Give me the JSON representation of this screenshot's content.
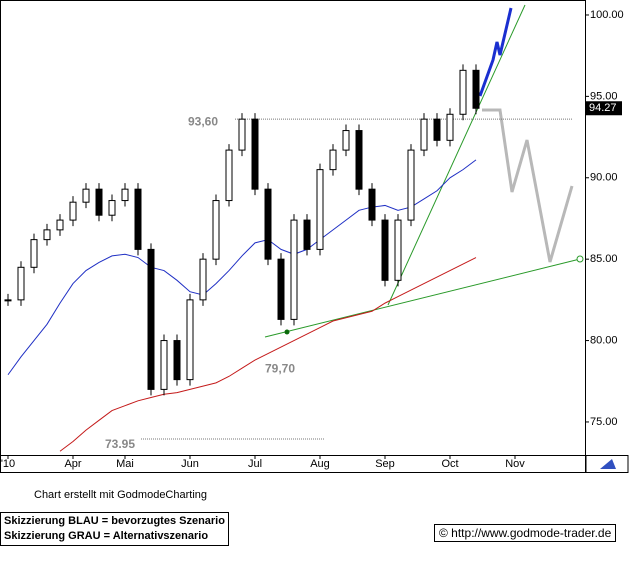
{
  "chart_data": {
    "type": "candlestick",
    "categories": [
      "'10",
      null,
      null,
      null,
      null,
      "Apr",
      null,
      null,
      null,
      "Mai",
      null,
      null,
      null,
      null,
      "Jun",
      null,
      null,
      null,
      null,
      "Jul",
      null,
      null,
      null,
      null,
      "Aug",
      null,
      null,
      null,
      null,
      "Sep",
      null,
      null,
      null,
      null,
      "Oct",
      null,
      null,
      null,
      null,
      "Nov",
      null,
      null,
      null,
      null,
      null
    ],
    "series": [
      {
        "name": "close",
        "color": "#000000",
        "values": [
          82.5,
          84.5,
          86.2,
          86.8,
          87.4,
          88.5,
          89.3,
          87.7,
          88.6,
          89.3,
          85.6,
          77,
          80,
          77.6,
          82.5,
          85,
          88.6,
          91.7,
          93.6,
          89.3,
          85,
          81.3,
          87.4,
          85.6,
          90.5,
          91.7,
          92.9,
          89.3,
          87.4,
          83.7,
          87.4,
          91.7,
          93.6,
          92.3,
          93.9,
          96.6,
          94.27,
          null,
          null,
          null,
          null,
          null,
          null,
          null,
          null
        ]
      },
      {
        "name": "ma-short",
        "color": "#1f2fc4",
        "values": [
          77.9,
          79,
          80,
          81,
          82.3,
          83.5,
          84.3,
          84.8,
          85.2,
          85.3,
          85.1,
          84.5,
          84.3,
          83.7,
          83,
          82.8,
          83.5,
          84.3,
          85.2,
          86,
          86.2,
          85.6,
          85.3,
          85.6,
          86.2,
          86.8,
          87.4,
          88,
          88.2,
          88.3,
          88,
          88.2,
          88.7,
          89.2,
          90,
          90.5,
          91.1,
          null,
          null,
          null,
          null,
          null,
          null,
          null,
          null
        ]
      },
      {
        "name": "ma-long",
        "color": "#c41a1a",
        "values": [
          null,
          null,
          null,
          null,
          73.2,
          73.8,
          74.5,
          75.1,
          75.7,
          76,
          76.3,
          76.5,
          76.7,
          76.8,
          77,
          77.2,
          77.4,
          77.8,
          78.3,
          78.8,
          79.2,
          79.6,
          80,
          80.4,
          80.8,
          81.2,
          81.4,
          81.6,
          81.8,
          82.3,
          82.7,
          83.1,
          83.5,
          83.9,
          84.3,
          84.7,
          85.1,
          null,
          null,
          null,
          null,
          null,
          null,
          null,
          null
        ]
      }
    ],
    "ylim": [
      72.97,
      100.92
    ],
    "yticks": [
      {
        "value": 75,
        "label": "75.00"
      },
      {
        "value": 80,
        "label": "80.00"
      },
      {
        "value": 85,
        "label": "85.00"
      },
      {
        "value": 90,
        "label": "90.00"
      },
      {
        "value": 95,
        "label": "95.00"
      },
      {
        "value": 100,
        "label": "100.00"
      }
    ],
    "annotations": [
      {
        "value": 93.6,
        "label": "93,60"
      },
      {
        "value": 79.7,
        "label": "79,70"
      },
      {
        "value": 73.95,
        "label": "73.95"
      }
    ],
    "last_price": {
      "value": 94.27,
      "label": "94.27"
    },
    "credit": "Chart erstellt mit GodmodeCharting",
    "legend_blue": "Skizzierung BLAU = bevorzugtes Szenario",
    "legend_gray": "Skizzierung GRAU = Alternativszenario",
    "source": "© http://www.godmode-trader.de"
  }
}
